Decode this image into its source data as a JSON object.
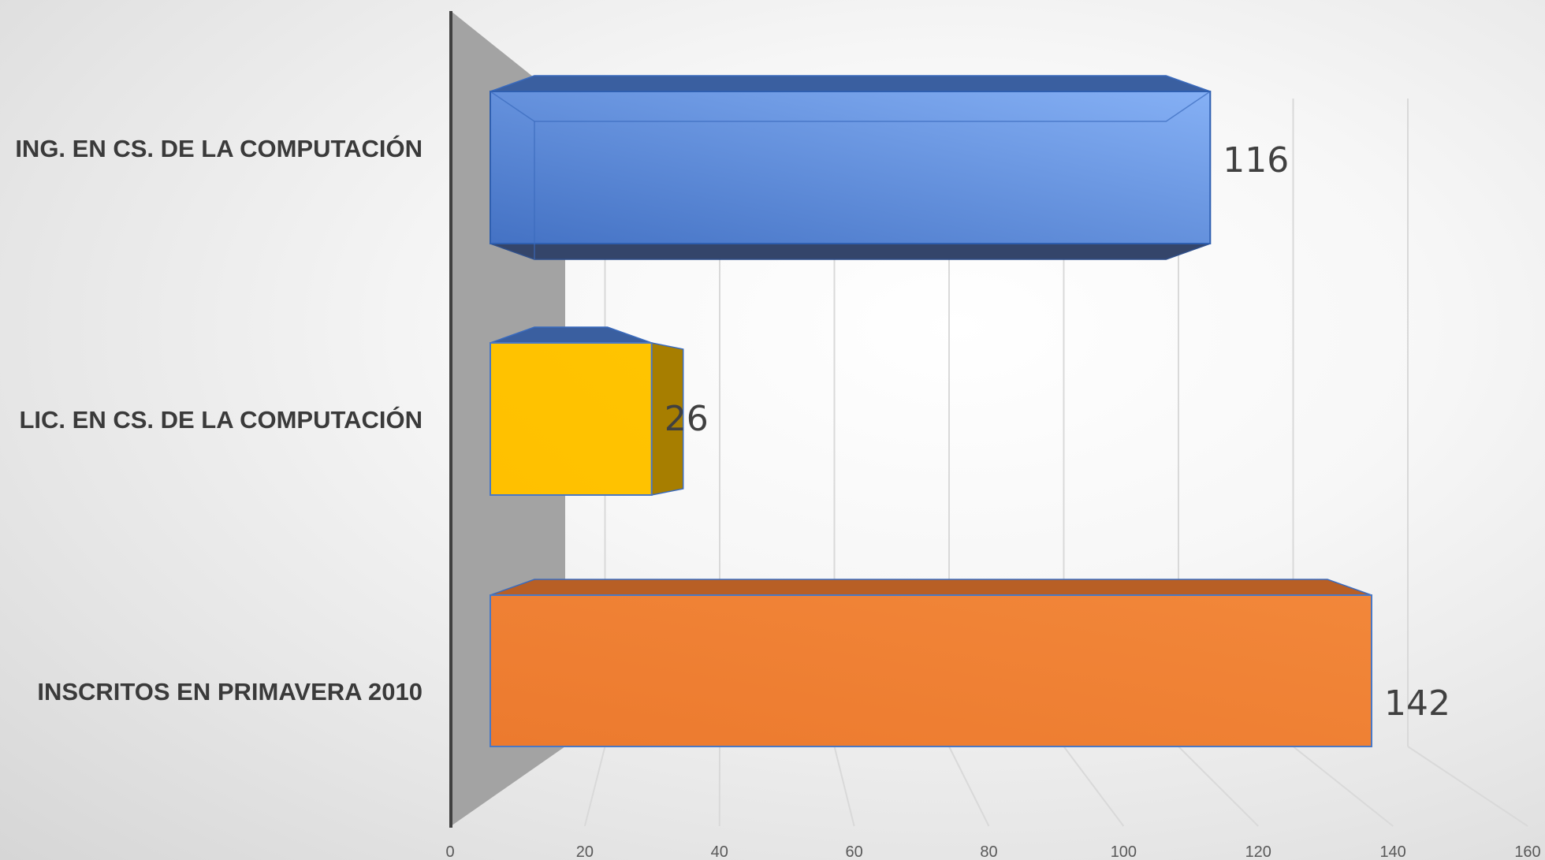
{
  "chart_data": {
    "type": "bar",
    "orientation": "horizontal",
    "style": "3d",
    "categories": [
      "ING. EN CS. DE LA COMPUTACIÓN",
      "LIC. EN CS. DE LA COMPUTACIÓN",
      "INSCRITOS EN PRIMAVERA 2010"
    ],
    "values": [
      116,
      26,
      142
    ],
    "data_labels": [
      "116",
      "26",
      "142"
    ],
    "colors": [
      "#4a7fd8",
      "#ffc000",
      "#ed7d31"
    ],
    "xlim": [
      0,
      160
    ],
    "xticks": [
      0,
      20,
      40,
      60,
      80,
      100,
      120,
      140,
      160
    ],
    "xtick_labels": [
      "0",
      "20",
      "40",
      "60",
      "80",
      "100",
      "120",
      "140",
      "160"
    ],
    "title": "",
    "xlabel": "",
    "ylabel": "",
    "grid": true,
    "legend": "none"
  }
}
